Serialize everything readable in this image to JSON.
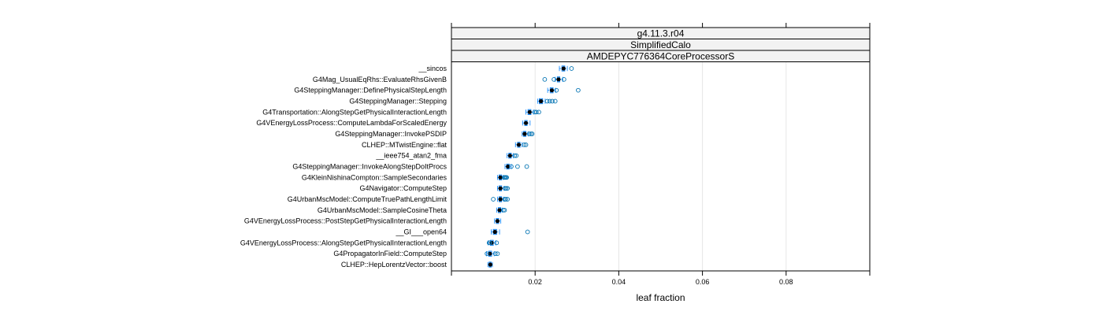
{
  "chart_data": {
    "type": "box",
    "strips": [
      "g4.11.3.r04",
      "SimplifiedCalo",
      "AMDEPYC776364CoreProcessorS"
    ],
    "xlabel": "leaf fraction",
    "ylabel": "",
    "xlim": [
      0.0,
      0.1
    ],
    "xticks": [
      0.02,
      0.04,
      0.06,
      0.08
    ],
    "xtick_labels": [
      "0.02",
      "0.04",
      "0.06",
      "0.08"
    ],
    "grid": true,
    "categories": [
      "__sincos",
      "G4Mag_UsualEqRhs::EvaluateRhsGivenB",
      "G4SteppingManager::DefinePhysicalStepLength",
      "G4SteppingManager::Stepping",
      "G4Transportation::AlongStepGetPhysicalInteractionLength",
      "G4VEnergyLossProcess::ComputeLambdaForScaledEnergy",
      "G4SteppingManager::InvokePSDIP",
      "CLHEP::MTwistEngine::flat",
      "__ieee754_atan2_fma",
      "G4SteppingManager::InvokeAlongStepDoItProcs",
      "G4KleinNishinaCompton::SampleSecondaries",
      "G4Navigator::ComputeStep",
      "G4UrbanMscModel::ComputeTruePathLengthLimit",
      "G4UrbanMscModel::SampleCosineTheta",
      "G4VEnergyLossProcess::PostStepGetPhysicalInteractionLength",
      "__GI___open64",
      "G4VEnergyLossProcess::AlongStepGetPhysicalInteractionLength",
      "G4PropagatorInField::ComputeStep",
      "CLHEP::HepLorentzVector::boost"
    ],
    "boxes": [
      {
        "whisker_low": 0.0258,
        "q1": 0.0264,
        "median": 0.0268,
        "q3": 0.0271,
        "whisker_high": 0.0277,
        "outliers": [
          0.0287
        ]
      },
      {
        "whisker_low": 0.0248,
        "q1": 0.0253,
        "median": 0.0256,
        "q3": 0.0259,
        "whisker_high": 0.0266,
        "outliers": [
          0.0223,
          0.0245,
          0.0269
        ]
      },
      {
        "whisker_low": 0.023,
        "q1": 0.0236,
        "median": 0.024,
        "q3": 0.0243,
        "whisker_high": 0.0249,
        "outliers": [
          0.0303,
          0.0251
        ]
      },
      {
        "whisker_low": 0.0206,
        "q1": 0.021,
        "median": 0.0214,
        "q3": 0.0218,
        "whisker_high": 0.0224,
        "outliers": [
          0.0229,
          0.0235,
          0.0241,
          0.0248
        ]
      },
      {
        "whisker_low": 0.0178,
        "q1": 0.0183,
        "median": 0.0187,
        "q3": 0.019,
        "whisker_high": 0.0196,
        "outliers": [
          0.0199,
          0.0203,
          0.0209
        ]
      },
      {
        "whisker_low": 0.017,
        "q1": 0.0175,
        "median": 0.0178,
        "q3": 0.0181,
        "whisker_high": 0.0188,
        "outliers": []
      },
      {
        "whisker_low": 0.0169,
        "q1": 0.0172,
        "median": 0.0175,
        "q3": 0.0178,
        "whisker_high": 0.0183,
        "outliers": [
          0.0186,
          0.019,
          0.0193
        ]
      },
      {
        "whisker_low": 0.0153,
        "q1": 0.0158,
        "median": 0.0161,
        "q3": 0.0164,
        "whisker_high": 0.0169,
        "outliers": [
          0.0174,
          0.0178
        ]
      },
      {
        "whisker_low": 0.0133,
        "q1": 0.0137,
        "median": 0.014,
        "q3": 0.0143,
        "whisker_high": 0.0148,
        "outliers": [
          0.0151,
          0.0155
        ]
      },
      {
        "whisker_low": 0.0128,
        "q1": 0.0132,
        "median": 0.0135,
        "q3": 0.0138,
        "whisker_high": 0.0143,
        "outliers": [
          0.0158,
          0.018,
          0.0143
        ]
      },
      {
        "whisker_low": 0.011,
        "q1": 0.0114,
        "median": 0.0117,
        "q3": 0.012,
        "whisker_high": 0.0124,
        "outliers": [
          0.0126,
          0.0128,
          0.013,
          0.0132
        ]
      },
      {
        "whisker_low": 0.011,
        "q1": 0.0114,
        "median": 0.0117,
        "q3": 0.012,
        "whisker_high": 0.0126,
        "outliers": [
          0.0128,
          0.0131,
          0.0134
        ]
      },
      {
        "whisker_low": 0.011,
        "q1": 0.0114,
        "median": 0.0117,
        "q3": 0.012,
        "whisker_high": 0.0125,
        "outliers": [
          0.01,
          0.0127,
          0.013,
          0.0134
        ]
      },
      {
        "whisker_low": 0.0108,
        "q1": 0.0112,
        "median": 0.0115,
        "q3": 0.0118,
        "whisker_high": 0.0122,
        "outliers": [
          0.0124,
          0.0127
        ]
      },
      {
        "whisker_low": 0.0103,
        "q1": 0.0107,
        "median": 0.011,
        "q3": 0.0113,
        "whisker_high": 0.0118,
        "outliers": []
      },
      {
        "whisker_low": 0.0095,
        "q1": 0.01,
        "median": 0.0104,
        "q3": 0.0108,
        "whisker_high": 0.0115,
        "outliers": [
          0.0182
        ]
      },
      {
        "whisker_low": 0.0088,
        "q1": 0.0093,
        "median": 0.0096,
        "q3": 0.01,
        "whisker_high": 0.0106,
        "outliers": [
          0.009,
          0.0092,
          0.0108
        ]
      },
      {
        "whisker_low": 0.0084,
        "q1": 0.0089,
        "median": 0.0092,
        "q3": 0.0096,
        "whisker_high": 0.0102,
        "outliers": [
          0.0085,
          0.0105,
          0.011
        ]
      },
      {
        "whisker_low": 0.0087,
        "q1": 0.009,
        "median": 0.0093,
        "q3": 0.0095,
        "whisker_high": 0.0098,
        "outliers": []
      }
    ],
    "colors": {
      "box": "#0080ff",
      "outlier": "#0072b2",
      "median": "#000000",
      "grid": "#e6e6e6",
      "strip_fill": "#f2f2f2",
      "frame": "#000000"
    }
  }
}
